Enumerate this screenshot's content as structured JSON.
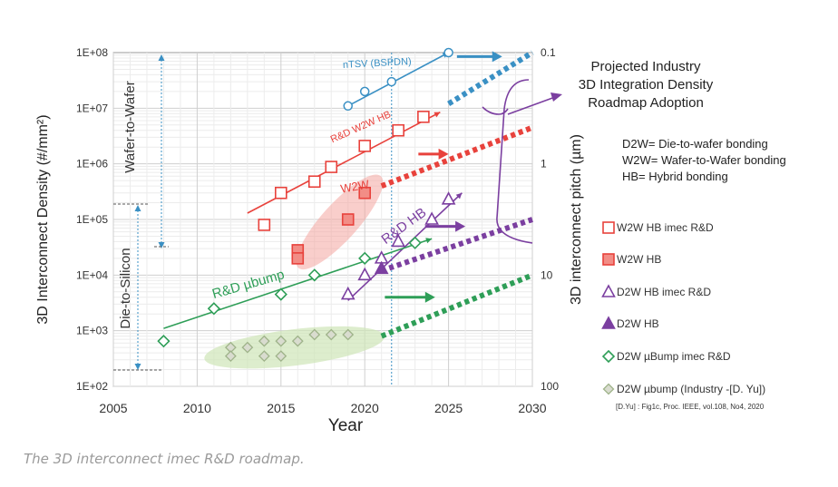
{
  "chart_data": {
    "type": "scatter",
    "xlabel": "Year",
    "ylabel": "3D Interconnect Density (#/mm²)",
    "y2label": "3D interconnect pitch (µm)",
    "xlim": [
      2005,
      2030
    ],
    "ylim": [
      100,
      100000000
    ],
    "y_scale": "log",
    "x_ticks": [
      "2005",
      "2010",
      "2015",
      "2020",
      "2025",
      "2030"
    ],
    "y_ticks": [
      "1E+02",
      "1E+03",
      "1E+04",
      "1E+05",
      "1E+06",
      "1E+07",
      "1E+08"
    ],
    "y2_ticks": [
      "0.1",
      "1",
      "10",
      "100"
    ],
    "grid": true,
    "series": [
      {
        "name": "W2W HB imec R&D",
        "marker": "square-open",
        "color": "#e8423c",
        "points": [
          [
            2014,
            80000
          ],
          [
            2015,
            300000
          ],
          [
            2017,
            480000
          ],
          [
            2018,
            880000
          ],
          [
            2020,
            2100000
          ],
          [
            2022,
            4000000
          ],
          [
            2023.5,
            7000000
          ]
        ]
      },
      {
        "name": "W2W HB",
        "marker": "square-filled",
        "color": "#e8423c",
        "points": [
          [
            2016,
            28000
          ],
          [
            2016,
            20000
          ],
          [
            2019,
            100000
          ],
          [
            2020,
            300000
          ]
        ]
      },
      {
        "name": "D2W HB imec R&D",
        "marker": "triangle-open",
        "color": "#7b3fa0",
        "points": [
          [
            2019,
            4500
          ],
          [
            2020,
            10000
          ],
          [
            2021,
            20000
          ],
          [
            2022,
            40000
          ],
          [
            2024,
            100000
          ],
          [
            2025,
            230000
          ]
        ]
      },
      {
        "name": "D2W HB",
        "marker": "triangle-filled",
        "color": "#7b3fa0",
        "points": [
          [
            2021,
            13000
          ]
        ]
      },
      {
        "name": "D2W µBump imec R&D",
        "marker": "diamond-open",
        "color": "#2e9e57",
        "points": [
          [
            2008,
            650
          ],
          [
            2011,
            2500
          ],
          [
            2015,
            4500
          ],
          [
            2017,
            10000
          ],
          [
            2020,
            20000
          ],
          [
            2023,
            38000
          ]
        ]
      },
      {
        "name": "D2W µbump (Industry -[D. Yu])",
        "marker": "diamond-gray",
        "color": "#9fb38a",
        "points": [
          [
            2012,
            500
          ],
          [
            2012,
            350
          ],
          [
            2013,
            500
          ],
          [
            2014,
            650
          ],
          [
            2014,
            350
          ],
          [
            2015,
            650
          ],
          [
            2015,
            350
          ],
          [
            2016,
            650
          ],
          [
            2017,
            850
          ],
          [
            2018,
            850
          ],
          [
            2019,
            850
          ]
        ]
      },
      {
        "name": "nTSV (BSPDN)",
        "marker": "circle-open",
        "color": "#3a90c4",
        "points": [
          [
            2019,
            11000000
          ],
          [
            2020,
            20000000
          ],
          [
            2021.6,
            30000000
          ],
          [
            2025,
            100000000
          ]
        ]
      }
    ],
    "trend_lines": [
      {
        "name": "nTSV (BSPDN)",
        "color": "#3a90c4",
        "x": [
          2019,
          2025
        ],
        "y": [
          11000000,
          100000000
        ]
      },
      {
        "name": "R&D W2W HB",
        "color": "#e8423c",
        "x": [
          2013,
          2024.5
        ],
        "y": [
          130000,
          8500000
        ]
      },
      {
        "name": "R&D HB",
        "color": "#7b3fa0",
        "x": [
          2019,
          2025.8
        ],
        "y": [
          3500,
          300000
        ]
      },
      {
        "name": "R&D µbump",
        "color": "#2e9e57",
        "x": [
          2008,
          2024
        ],
        "y": [
          1100,
          45000
        ]
      }
    ],
    "projections": [
      {
        "color": "#3a90c4",
        "x": [
          2025,
          2030
        ],
        "y": [
          12000000,
          100000000
        ]
      },
      {
        "color": "#e8423c",
        "x": [
          2021,
          2030
        ],
        "y": [
          400000,
          4500000
        ]
      },
      {
        "color": "#7b3fa0",
        "x": [
          2021,
          2030
        ],
        "y": [
          12000,
          100000
        ]
      },
      {
        "color": "#2e9e57",
        "x": [
          2021,
          2030
        ],
        "y": [
          800,
          10000
        ]
      }
    ],
    "annotations": {
      "wafer_to_wafer": "Wafer-to-Wafer",
      "die_to_silicon": "Die-to-Silicon",
      "ntsv_label": "nTSV (BSPDN)",
      "w2w_rd_label": "R&D W2W HB",
      "w2w_label": "W2W",
      "hb_rd_label": "R&D HB",
      "ubump_rd_label": "R&D µbump",
      "projected_title": [
        "Projected Industry",
        "3D Integration Density",
        "Roadmap Adoption"
      ],
      "definitions": [
        "D2W= Die-to-wafer bonding",
        "W2W= Wafer-to-Wafer bonding",
        "HB= Hybrid bonding"
      ],
      "reference": "[D.Yu] : Fig1c, Proc. IEEE, vol.108, No4, 2020"
    }
  },
  "caption": "The 3D interconnect imec R&D roadmap."
}
